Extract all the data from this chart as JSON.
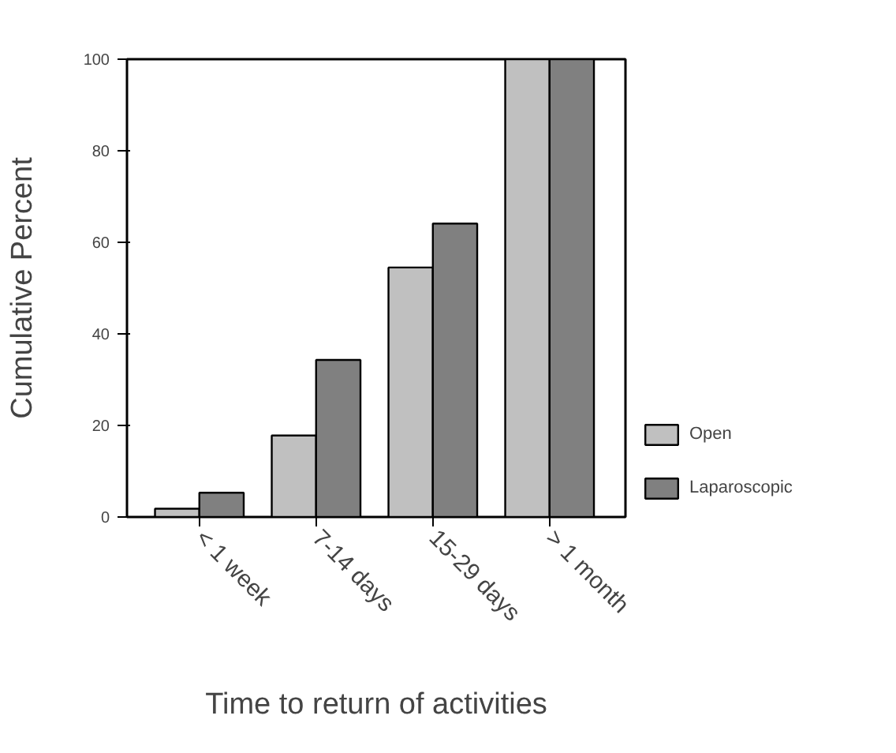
{
  "chart_data": {
    "type": "bar",
    "xlabel": "Time to return of activities",
    "ylabel": "Cumulative Percent",
    "categories": [
      "< 1 week",
      "7-14 days",
      "15-29 days",
      "> 1 month"
    ],
    "series": [
      {
        "name": "Open",
        "color": "#c0c0c0",
        "values": [
          1.8,
          17.8,
          54.5,
          100
        ]
      },
      {
        "name": "Laparoscopic",
        "color": "#808080",
        "values": [
          5.3,
          34.3,
          64.1,
          100
        ]
      }
    ],
    "ylim": [
      0,
      100
    ],
    "yticks": [
      0,
      20,
      40,
      60,
      80,
      100
    ],
    "legend": "right"
  }
}
